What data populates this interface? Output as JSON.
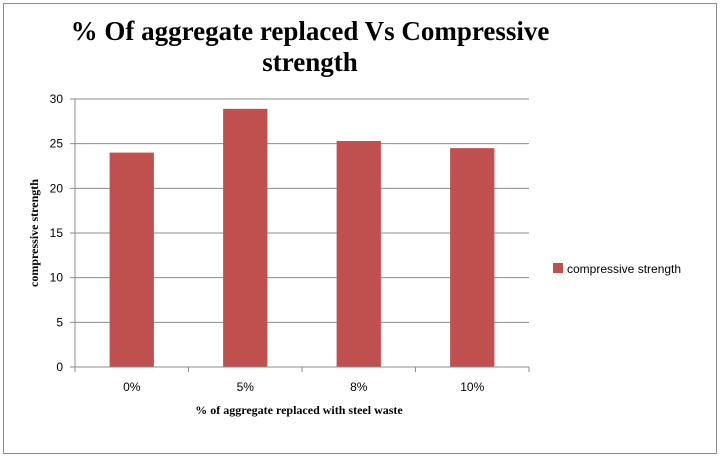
{
  "chart_data": {
    "type": "bar",
    "title": "% Of aggregate replaced Vs Compressive strength",
    "xlabel": "% of aggregate replaced with steel waste",
    "ylabel": "compressive strength",
    "categories": [
      "0%",
      "5%",
      "8%",
      "10%"
    ],
    "series": [
      {
        "name": "compressive strength",
        "values": [
          24,
          28.9,
          25.3,
          24.5
        ],
        "color": "#c0504d"
      }
    ],
    "ylim": [
      0,
      30
    ],
    "yticks": [
      0,
      5,
      10,
      15,
      20,
      25,
      30
    ],
    "grid": true,
    "legend": "right"
  }
}
